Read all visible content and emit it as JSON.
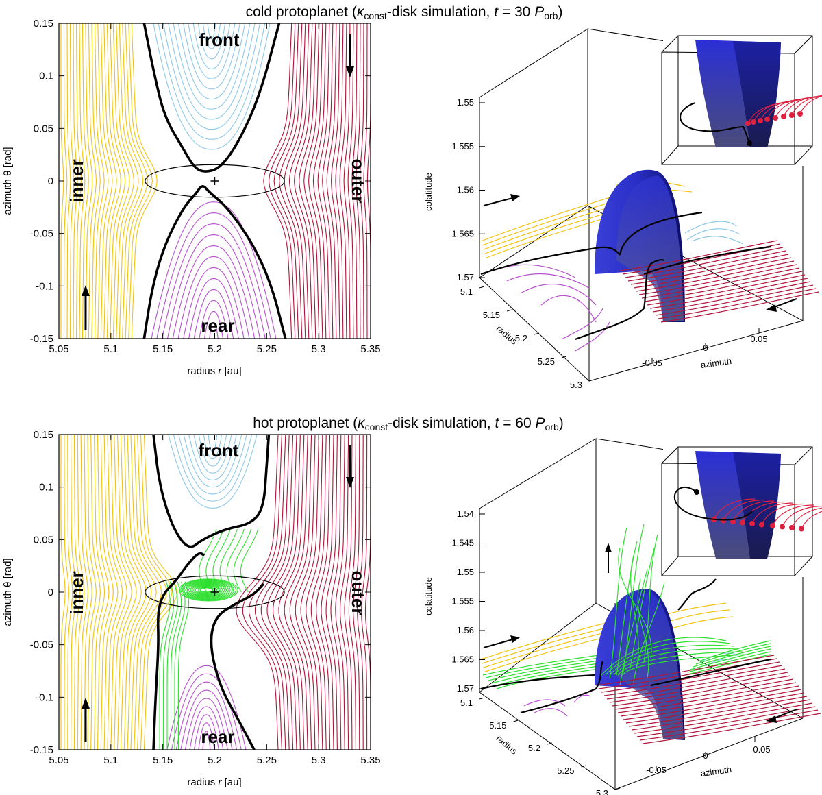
{
  "chart_data": [
    {
      "type": "line",
      "panel": "top",
      "title": "cold protoplanet (κconst-disk simulation, t = 30 Porb)",
      "title_parts": [
        "cold protoplanet (",
        "κ",
        "const",
        "-disk simulation, ",
        "t",
        " = 30 ",
        "P",
        "orb",
        ")"
      ],
      "xlabel_parts": [
        "radius ",
        "r",
        " [au]"
      ],
      "ylabel": "azimuth θ [rad]",
      "xlim": [
        5.05,
        5.35
      ],
      "ylim": [
        -0.15,
        0.15
      ],
      "xticks": [
        "5.05",
        "5.1",
        "5.15",
        "5.2",
        "5.25",
        "5.3",
        "5.35"
      ],
      "yticks": [
        "0.15",
        "0.1",
        "0.05",
        "0",
        "-0.05",
        "-0.1",
        "-0.15"
      ],
      "regions": {
        "front": "front",
        "rear": "rear",
        "inner": "inner",
        "outer": "outer"
      },
      "planet": {
        "r": 5.2,
        "theta": 0.0
      },
      "hill_ellipse": {
        "r_center": 5.2,
        "r_half_width": 0.067,
        "theta_half_height": 0.0155
      },
      "separatrix_front": [
        [
          5.132,
          0.15
        ],
        [
          5.142,
          0.1
        ],
        [
          5.152,
          0.06
        ],
        [
          5.17,
          0.03
        ],
        [
          5.18,
          0.013
        ],
        [
          5.19,
          0.008
        ],
        [
          5.205,
          0.012
        ],
        [
          5.222,
          0.035
        ],
        [
          5.243,
          0.08
        ],
        [
          5.262,
          0.15
        ]
      ],
      "separatrix_rear": [
        [
          5.132,
          -0.15
        ],
        [
          5.14,
          -0.1
        ],
        [
          5.152,
          -0.06
        ],
        [
          5.17,
          -0.025
        ],
        [
          5.182,
          -0.012
        ],
        [
          5.188,
          -0.003
        ],
        [
          5.195,
          -0.011
        ],
        [
          5.212,
          -0.025
        ],
        [
          5.237,
          -0.06
        ],
        [
          5.255,
          -0.1
        ],
        [
          5.268,
          -0.15
        ]
      ],
      "series": [
        {
          "name": "inner streamlines",
          "color": "#f2c40f",
          "r_from": 5.052,
          "r_to": 5.126,
          "count": 24
        },
        {
          "name": "front horseshoe",
          "color": "#8cc8ea",
          "count": 12
        },
        {
          "name": "rear horseshoe",
          "color": "#b94fd0",
          "count": 12
        },
        {
          "name": "outer streamlines",
          "color": "#b0153a",
          "r_from": 5.268,
          "r_to": 5.35,
          "count": 24
        }
      ],
      "view3d": {
        "colatitude_label": "colatitude",
        "radius_label": "radius",
        "azimuth_label": "azimuth",
        "colat_ticks": [
          "1.55",
          "1.555",
          "1.56",
          "1.565",
          "1.57"
        ],
        "radius_ticks": [
          "5.1",
          "5.15",
          "5.2",
          "5.25",
          "5.3"
        ],
        "azimuth_ticks": [
          "-0.05",
          "0",
          "0.05"
        ]
      }
    },
    {
      "type": "line",
      "panel": "bottom",
      "title": "hot protoplanet (κconst-disk simulation, t = 60 Porb)",
      "title_parts": [
        "hot protoplanet (",
        "κ",
        "const",
        "-disk simulation, ",
        "t",
        " = 60 ",
        "P",
        "orb",
        ")"
      ],
      "xlabel_parts": [
        "radius ",
        "r",
        " [au]"
      ],
      "ylabel": "azimuth θ [rad]",
      "xlim": [
        5.05,
        5.35
      ],
      "ylim": [
        -0.15,
        0.15
      ],
      "xticks": [
        "5.05",
        "5.1",
        "5.15",
        "5.2",
        "5.25",
        "5.3",
        "5.35"
      ],
      "yticks": [
        "0.15",
        "0.1",
        "0.05",
        "0",
        "-0.05",
        "-0.1",
        "-0.15"
      ],
      "regions": {
        "front": "front",
        "rear": "rear",
        "inner": "inner",
        "outer": "outer"
      },
      "planet": {
        "r": 5.2,
        "theta": 0.0
      },
      "hill_ellipse": {
        "r_center": 5.2,
        "r_half_width": 0.067,
        "theta_half_height": 0.0155
      },
      "separatrix_front": [
        [
          5.141,
          0.15
        ],
        [
          5.147,
          0.1
        ],
        [
          5.16,
          0.06
        ],
        [
          5.175,
          0.04
        ],
        [
          5.188,
          0.05
        ],
        [
          5.21,
          0.06
        ],
        [
          5.235,
          0.065
        ],
        [
          5.247,
          0.08
        ],
        [
          5.25,
          0.12
        ],
        [
          5.252,
          0.15
        ]
      ],
      "separatrix_rear": [
        [
          5.141,
          -0.15
        ],
        [
          5.143,
          -0.1
        ],
        [
          5.146,
          -0.05
        ],
        [
          5.145,
          -0.02
        ],
        [
          5.15,
          -0.002
        ],
        [
          5.162,
          0.01
        ],
        [
          5.175,
          0.028
        ],
        [
          5.185,
          0.038
        ],
        [
          5.19,
          0.035
        ]
      ],
      "separatrix_rear2": [
        [
          5.247,
          0.008
        ],
        [
          5.238,
          -0.002
        ],
        [
          5.218,
          -0.012
        ],
        [
          5.2,
          -0.024
        ],
        [
          5.195,
          -0.05
        ],
        [
          5.205,
          -0.09
        ],
        [
          5.222,
          -0.12
        ],
        [
          5.238,
          -0.15
        ]
      ],
      "series": [
        {
          "name": "inner streamlines",
          "color": "#f2c40f",
          "r_from": 5.052,
          "r_to": 5.138,
          "count": 26
        },
        {
          "name": "front horseshoe",
          "color": "#8cc8ea",
          "count": 9
        },
        {
          "name": "rear horseshoe",
          "color": "#b94fd0",
          "count": 9
        },
        {
          "name": "envelope / green flow",
          "color": "#2ee02e",
          "count": 14
        },
        {
          "name": "outer streamlines",
          "color": "#b0153a",
          "r_from": 5.255,
          "r_to": 5.35,
          "count": 26
        }
      ],
      "view3d": {
        "colatitude_label": "colatitude",
        "radius_label": "radius",
        "azimuth_label": "azimuth",
        "colat_ticks": [
          "1.54",
          "1.545",
          "1.55",
          "1.555",
          "1.56",
          "1.565",
          "1.57"
        ],
        "radius_ticks": [
          "5.1",
          "5.15",
          "5.2",
          "5.25",
          "5.3"
        ],
        "azimuth_ticks": [
          "-0.05",
          "0",
          "0.05"
        ]
      }
    }
  ]
}
